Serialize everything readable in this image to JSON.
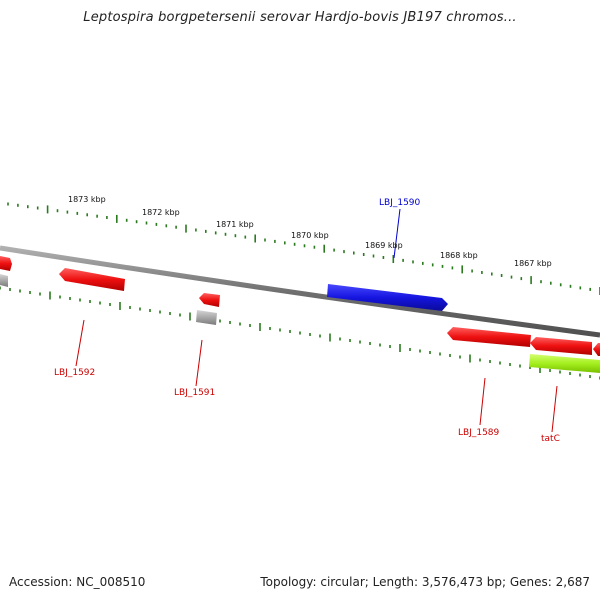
{
  "title": "Leptospira borgpetersenii serovar Hardjo-bovis JB197 chromos...",
  "footer": {
    "accession_text": "Accession: NC_008510",
    "summary_text": "Topology: circular; Length: 3,576,473 bp; Genes: 2,687"
  },
  "colors": {
    "backbone": "#808080",
    "tick": "#2a7a1e",
    "gene_red": "#ee1010",
    "gene_blue": "#1515e0",
    "gene_gray": "#a8a8a8",
    "gene_green": "#a4ef1e",
    "label_red": "#cc0000",
    "label_blue": "#0000cc"
  },
  "kbp_labels": [
    "1873 kbp",
    "1872 kbp",
    "1871 kbp",
    "1870 kbp",
    "1869 kbp",
    "1868 kbp",
    "1867 kbp"
  ],
  "gene_labels": [
    {
      "text": "LBJ_1592",
      "color": "red"
    },
    {
      "text": "LBJ_1591",
      "color": "red"
    },
    {
      "text": "LBJ_1590",
      "color": "blue"
    },
    {
      "text": "LBJ_1589",
      "color": "red"
    },
    {
      "text": "tatC",
      "color": "red"
    }
  ]
}
